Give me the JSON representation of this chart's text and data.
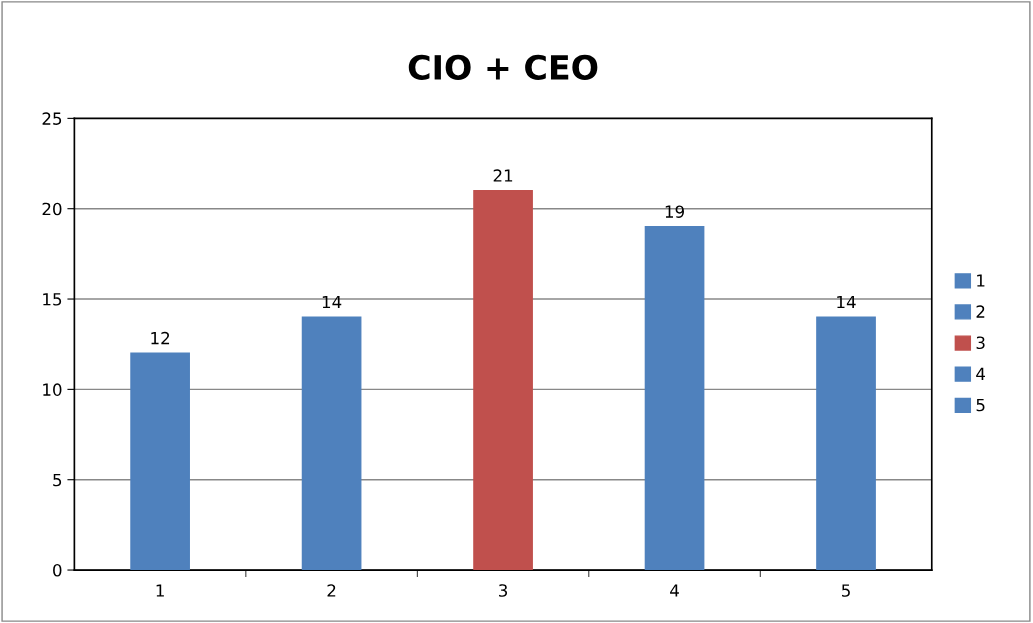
{
  "chart_data": {
    "type": "bar",
    "title": "CIO + CEO",
    "categories": [
      "1",
      "2",
      "3",
      "4",
      "5"
    ],
    "stacked": true,
    "series": [
      {
        "name": "1",
        "color": "#4f81bd",
        "values": [
          12,
          null,
          null,
          null,
          null
        ]
      },
      {
        "name": "2",
        "color": "#4f81bd",
        "values": [
          null,
          14,
          null,
          null,
          null
        ]
      },
      {
        "name": "3",
        "color": "#c0504d",
        "values": [
          null,
          null,
          21,
          null,
          null
        ]
      },
      {
        "name": "4",
        "color": "#4f81bd",
        "values": [
          null,
          null,
          null,
          19,
          null
        ]
      },
      {
        "name": "5",
        "color": "#4f81bd",
        "values": [
          null,
          null,
          null,
          null,
          14
        ]
      }
    ],
    "ylim": [
      0,
      25
    ],
    "yticks": [
      0,
      5,
      10,
      15,
      20,
      25
    ],
    "grid": "y",
    "data_labels": true,
    "legend": "right"
  }
}
